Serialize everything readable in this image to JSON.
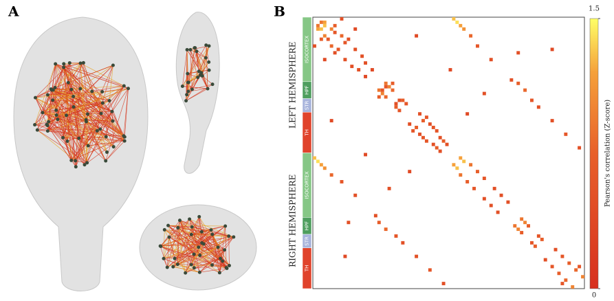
{
  "panel_a": {
    "label": "A"
  },
  "panel_b": {
    "label": "B",
    "hemispheres": [
      "LEFT HEMISPHERE",
      "RIGHT HEMISPHERE"
    ],
    "regions": [
      {
        "name": "ISOCORTEX",
        "color": "#86c786",
        "size": 19
      },
      {
        "name": "HPF",
        "color": "#4e9e5e",
        "size": 5
      },
      {
        "name": "STR",
        "color": "#a8b4dc",
        "size": 4
      },
      {
        "name": "TH",
        "color": "#e0432c",
        "size": 12
      }
    ],
    "matrix_size": 80,
    "cells": [
      [
        1,
        3,
        1.2
      ],
      [
        2,
        3,
        1.3
      ],
      [
        1,
        2,
        0.9
      ],
      [
        3,
        5,
        1.0
      ],
      [
        2,
        6,
        0.7
      ],
      [
        4,
        6,
        0.6
      ],
      [
        5,
        8,
        0.8
      ],
      [
        7,
        9,
        0.6
      ],
      [
        6,
        10,
        0.5
      ],
      [
        9,
        12,
        0.5
      ],
      [
        11,
        14,
        0.5
      ],
      [
        13,
        15,
        0.5
      ],
      [
        15,
        17,
        0.4
      ],
      [
        0,
        8,
        0.5
      ],
      [
        3,
        12,
        0.4
      ],
      [
        19,
        21,
        0.9
      ],
      [
        20,
        22,
        1.0
      ],
      [
        19,
        23,
        0.7
      ],
      [
        21,
        23,
        0.8
      ],
      [
        20,
        21,
        0.6
      ],
      [
        24,
        26,
        0.7
      ],
      [
        25,
        27,
        0.6
      ],
      [
        24,
        25,
        0.5
      ],
      [
        28,
        31,
        0.5
      ],
      [
        29,
        33,
        0.6
      ],
      [
        30,
        32,
        0.7
      ],
      [
        31,
        34,
        0.5
      ],
      [
        33,
        36,
        0.6
      ],
      [
        35,
        37,
        0.5
      ],
      [
        36,
        38,
        0.7
      ],
      [
        37,
        39,
        0.5
      ],
      [
        32,
        35,
        0.6
      ],
      [
        0,
        41,
        1.3
      ],
      [
        1,
        42,
        1.4
      ],
      [
        2,
        43,
        1.2
      ],
      [
        3,
        44,
        1.1
      ],
      [
        5,
        46,
        0.8
      ],
      [
        8,
        48,
        0.6
      ],
      [
        12,
        52,
        0.5
      ],
      [
        19,
        60,
        0.7
      ],
      [
        21,
        62,
        0.8
      ],
      [
        24,
        64,
        0.6
      ],
      [
        26,
        66,
        0.5
      ],
      [
        30,
        70,
        0.5
      ],
      [
        34,
        74,
        0.6
      ],
      [
        38,
        78,
        0.5
      ],
      [
        41,
        43,
        1.2
      ],
      [
        42,
        44,
        1.3
      ],
      [
        43,
        46,
        0.9
      ],
      [
        45,
        48,
        0.7
      ],
      [
        47,
        50,
        0.6
      ],
      [
        50,
        53,
        0.5
      ],
      [
        52,
        55,
        0.5
      ],
      [
        54,
        57,
        0.5
      ],
      [
        59,
        61,
        0.9
      ],
      [
        60,
        62,
        1.0
      ],
      [
        61,
        63,
        0.7
      ],
      [
        64,
        66,
        0.6
      ],
      [
        65,
        67,
        0.7
      ],
      [
        68,
        71,
        0.5
      ],
      [
        70,
        73,
        0.6
      ],
      [
        72,
        75,
        0.7
      ],
      [
        74,
        77,
        0.8
      ],
      [
        76,
        79,
        1.0
      ],
      [
        73,
        78,
        0.6
      ],
      [
        5,
        30,
        0.4
      ],
      [
        10,
        60,
        0.5
      ],
      [
        15,
        40,
        0.4
      ],
      [
        22,
        50,
        0.5
      ],
      [
        9,
        70,
        0.4
      ],
      [
        28,
        45,
        0.4
      ],
      [
        18,
        58,
        0.5
      ]
    ],
    "colorbar": {
      "label": "Pearson's correlation (Z-score)",
      "lim": [
        0,
        1.5
      ],
      "ticks": [
        0,
        1.5
      ]
    }
  }
}
